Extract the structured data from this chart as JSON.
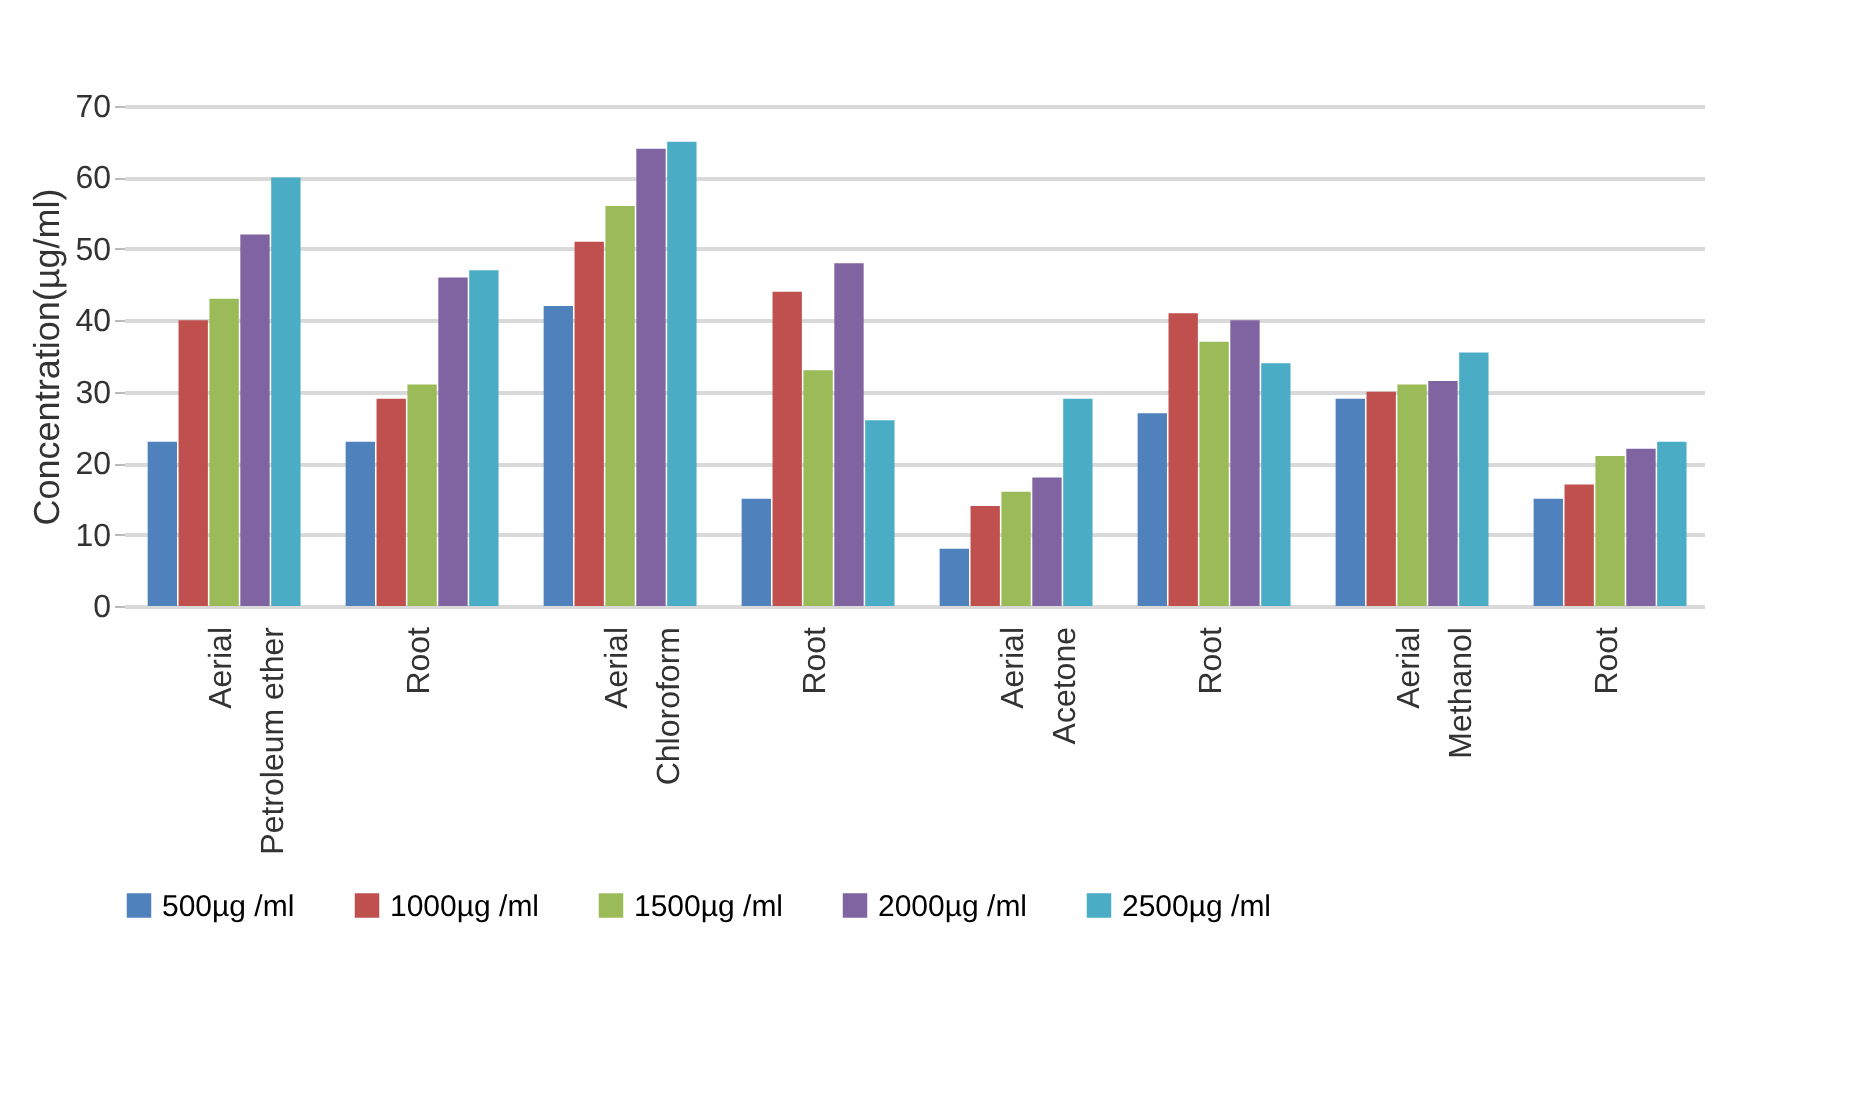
{
  "chart_data": {
    "type": "bar",
    "ylabel": "Concentration(µg/ml)",
    "categories": [
      "Aerial\nPetroleum ether",
      "Root",
      "Aerial\nChloroform",
      "Root",
      "Aerial\nAcetone",
      "Root",
      "Aerial\nMethanol",
      "Root"
    ],
    "series": [
      {
        "name": "500µg /ml",
        "color": "#4f81bd",
        "values": [
          23,
          23,
          42,
          15,
          8,
          27,
          29,
          15
        ]
      },
      {
        "name": "1000µg /ml",
        "color": "#c0504d",
        "values": [
          40,
          29,
          51,
          44,
          14,
          41,
          30,
          17
        ]
      },
      {
        "name": "1500µg /ml",
        "color": "#9bbb59",
        "values": [
          43,
          31,
          56,
          33,
          16,
          37,
          31,
          21
        ]
      },
      {
        "name": "2000µg /ml",
        "color": "#8064a2",
        "values": [
          52,
          46,
          64,
          48,
          18,
          40,
          31.5,
          22
        ]
      },
      {
        "name": "2500µg /ml",
        "color": "#4bacc6",
        "values": [
          60,
          47,
          65,
          26,
          29,
          34,
          35.5,
          23
        ]
      }
    ],
    "ylim": [
      0,
      70
    ],
    "yticks": [
      0,
      10,
      20,
      30,
      40,
      50,
      60,
      70
    ],
    "grid": "y",
    "legend": "bottom"
  }
}
